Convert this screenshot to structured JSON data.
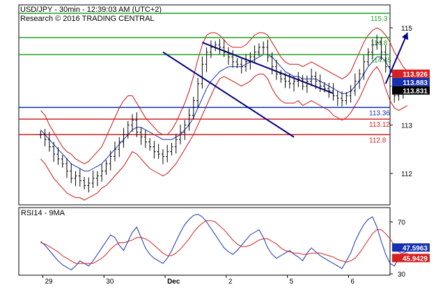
{
  "header": {
    "title": "USD/JPY - 30min - 12:39:03 AM (UTC+2)",
    "subtitle": "Research © 2016 TRADING CENTRAL"
  },
  "chart_data": [
    {
      "type": "line",
      "title": "USD/JPY - 30min - 12:39:03 AM (UTC+2)",
      "x_tick_labels": [
        "29",
        "30",
        "Dec",
        "2",
        "5",
        "6"
      ],
      "x_tick_positions": [
        0.5,
        14.5,
        28.5,
        42.5,
        56.5,
        70.5
      ],
      "x_range": [
        -5,
        80
      ],
      "y_ticks": [
        112,
        113,
        114,
        115
      ],
      "ylim": [
        111.35,
        115.6
      ],
      "grid": false,
      "series": [
        {
          "values": [
            112.8,
            112.7,
            112.55,
            112.4,
            112.3,
            112.2,
            112.05,
            111.9,
            111.95,
            111.85,
            111.75,
            111.8,
            111.9,
            111.95,
            112.05,
            112.2,
            112.35,
            112.5,
            112.65,
            112.8,
            113.0,
            113.1,
            112.85,
            112.75,
            112.65,
            112.55,
            112.45,
            112.4,
            112.35,
            112.45,
            112.55,
            112.7,
            112.85,
            113.0,
            113.2,
            113.5,
            113.85,
            114.25,
            114.5,
            114.6,
            114.65,
            114.6,
            114.5,
            114.4,
            114.3,
            114.25,
            114.2,
            114.3,
            114.4,
            114.5,
            114.6,
            114.6,
            114.4,
            114.2,
            114.05,
            113.95,
            113.9,
            113.85,
            113.9,
            113.95,
            113.8,
            113.9,
            114.0,
            113.9,
            113.8,
            113.75,
            113.7,
            113.6,
            113.55,
            113.5,
            113.6,
            113.7,
            113.9,
            114.05,
            114.3,
            114.5,
            114.65,
            114.7,
            114.5,
            114.2,
            113.8,
            113.6,
            113.7,
            113.8,
            113.83
          ],
          "band_upper": [
            113.3,
            113.2,
            113.0,
            112.85,
            112.7,
            112.55,
            112.45,
            112.4,
            112.3,
            112.25,
            112.2,
            112.25,
            112.35,
            112.45,
            112.55,
            112.75,
            112.95,
            113.15,
            113.35,
            113.5,
            113.6,
            113.6,
            113.45,
            113.3,
            113.15,
            113.05,
            112.95,
            112.85,
            112.8,
            112.8,
            112.9,
            113.05,
            113.25,
            113.45,
            113.7,
            114.0,
            114.35,
            114.65,
            114.85,
            114.9,
            114.9,
            114.85,
            114.75,
            114.65,
            114.6,
            114.6,
            114.6,
            114.65,
            114.75,
            114.85,
            114.9,
            114.9,
            114.85,
            114.7,
            114.55,
            114.4,
            114.3,
            114.25,
            114.25,
            114.25,
            114.2,
            114.25,
            114.3,
            114.25,
            114.2,
            114.15,
            114.1,
            114.05,
            114.0,
            113.95,
            114.0,
            114.1,
            114.3,
            114.5,
            114.7,
            114.85,
            114.95,
            115.0,
            114.95,
            114.85,
            114.7,
            114.5,
            114.35,
            114.2,
            114.1
          ],
          "band_lower": [
            112.3,
            112.2,
            112.05,
            111.9,
            111.8,
            111.7,
            111.6,
            111.55,
            111.5,
            111.5,
            111.45,
            111.5,
            111.55,
            111.6,
            111.7,
            111.75,
            111.85,
            111.95,
            112.05,
            112.15,
            112.3,
            112.45,
            112.4,
            112.3,
            112.2,
            112.1,
            112.05,
            112.0,
            111.95,
            112.0,
            112.1,
            112.2,
            112.35,
            112.5,
            112.65,
            112.8,
            113.0,
            113.2,
            113.4,
            113.6,
            113.8,
            113.95,
            114.0,
            113.95,
            113.9,
            113.85,
            113.8,
            113.85,
            113.9,
            114.0,
            114.05,
            114.05,
            113.95,
            113.75,
            113.6,
            113.5,
            113.45,
            113.45,
            113.45,
            113.5,
            113.4,
            113.45,
            113.5,
            113.45,
            113.4,
            113.35,
            113.3,
            113.2,
            113.15,
            113.1,
            113.15,
            113.25,
            113.4,
            113.55,
            113.75,
            113.95,
            114.1,
            114.2,
            114.05,
            113.75,
            113.5,
            113.35,
            113.3,
            113.35,
            113.4
          ],
          "moving_average": [
            112.9,
            112.8,
            112.7,
            112.6,
            112.5,
            112.4,
            112.3,
            112.2,
            112.15,
            112.1,
            112.05,
            112.05,
            112.1,
            112.15,
            112.2,
            112.3,
            112.4,
            112.5,
            112.6,
            112.7,
            112.8,
            112.9,
            112.95,
            112.95,
            112.9,
            112.85,
            112.8,
            112.75,
            112.7,
            112.7,
            112.7,
            112.75,
            112.8,
            112.9,
            113.0,
            113.15,
            113.35,
            113.55,
            113.75,
            113.9,
            114.0,
            114.1,
            114.15,
            114.2,
            114.2,
            114.2,
            114.2,
            114.25,
            114.3,
            114.35,
            114.4,
            114.45,
            114.45,
            114.4,
            114.3,
            114.2,
            114.1,
            114.05,
            114.0,
            114.0,
            113.95,
            113.95,
            113.95,
            113.95,
            113.9,
            113.85,
            113.8,
            113.75,
            113.7,
            113.65,
            113.65,
            113.7,
            113.8,
            113.9,
            114.05,
            114.2,
            114.3,
            114.4,
            114.4,
            114.3,
            114.15,
            114.0,
            113.95,
            113.9,
            113.88
          ]
        }
      ],
      "resistance_levels": [
        "115.3",
        "114.8",
        "114.45"
      ],
      "resistance_values": [
        115.3,
        114.8,
        114.45
      ],
      "support_levels": [
        "113.36",
        "113.12",
        "112.8"
      ],
      "support_values": [
        113.36,
        113.12,
        112.8
      ],
      "price_badges": [
        "113.926",
        "113.883",
        "113.831"
      ],
      "price_badge_values": [
        113.926,
        113.883,
        113.831
      ],
      "price_badge_colors": [
        "#d42020",
        "#1530b0",
        "#000000"
      ],
      "channel_upper": {
        "x": [
          37,
          67
        ],
        "y": [
          114.7,
          113.65
        ]
      },
      "channel_lower": {
        "x": [
          28,
          58
        ],
        "y": [
          114.5,
          112.75
        ]
      },
      "projection": {
        "x": [
          79,
          84
        ],
        "y": [
          113.85,
          114.9
        ]
      },
      "colors": {
        "resistance": "#22a022",
        "support_blue": "#1530b0",
        "support_red": "#d42020",
        "price": "#000000",
        "band": "#cc1111",
        "ma": "#1530b0",
        "channel": "#000080"
      }
    },
    {
      "type": "line",
      "title": "RSI14 - 9MA",
      "ylim": [
        30,
        80
      ],
      "y_ticks": [
        30,
        50,
        70
      ],
      "x_range": [
        -5,
        80
      ],
      "series": [
        {
          "name": "RSI14",
          "values": [
            55,
            52,
            48,
            44,
            40,
            37,
            35,
            33,
            36,
            40,
            38,
            36,
            40,
            45,
            50,
            55,
            60,
            58,
            52,
            48,
            55,
            62,
            66,
            58,
            50,
            45,
            42,
            40,
            38,
            42,
            48,
            55,
            62,
            68,
            72,
            75,
            76,
            74,
            70,
            65,
            60,
            55,
            50,
            47,
            45,
            48,
            52,
            56,
            60,
            62,
            64,
            58,
            50,
            45,
            42,
            44,
            46,
            48,
            45,
            43,
            40,
            46,
            50,
            47,
            44,
            42,
            40,
            38,
            36,
            34,
            40,
            46,
            55,
            62,
            68,
            72,
            74,
            66,
            55,
            45,
            38,
            36,
            42,
            46,
            47.5963
          ]
        },
        {
          "name": "9MA",
          "values": [
            54,
            53,
            51,
            49,
            47,
            44,
            42,
            40,
            38,
            38,
            38,
            38,
            38,
            40,
            42,
            45,
            49,
            52,
            54,
            54,
            55,
            56,
            58,
            58,
            57,
            55,
            52,
            49,
            46,
            44,
            44,
            46,
            49,
            53,
            57,
            62,
            66,
            69,
            71,
            71,
            70,
            67,
            64,
            60,
            56,
            53,
            51,
            51,
            52,
            54,
            56,
            57,
            57,
            55,
            53,
            50,
            48,
            47,
            46,
            46,
            45,
            45,
            46,
            46,
            46,
            45,
            44,
            43,
            41,
            40,
            39,
            40,
            42,
            46,
            51,
            56,
            61,
            64,
            64,
            61,
            57,
            52,
            47,
            45,
            45.9429
          ]
        }
      ],
      "value_badges": [
        "47.5963",
        "45.9429"
      ],
      "value_badge_colors": [
        "#1530b0",
        "#d42020"
      ]
    }
  ]
}
